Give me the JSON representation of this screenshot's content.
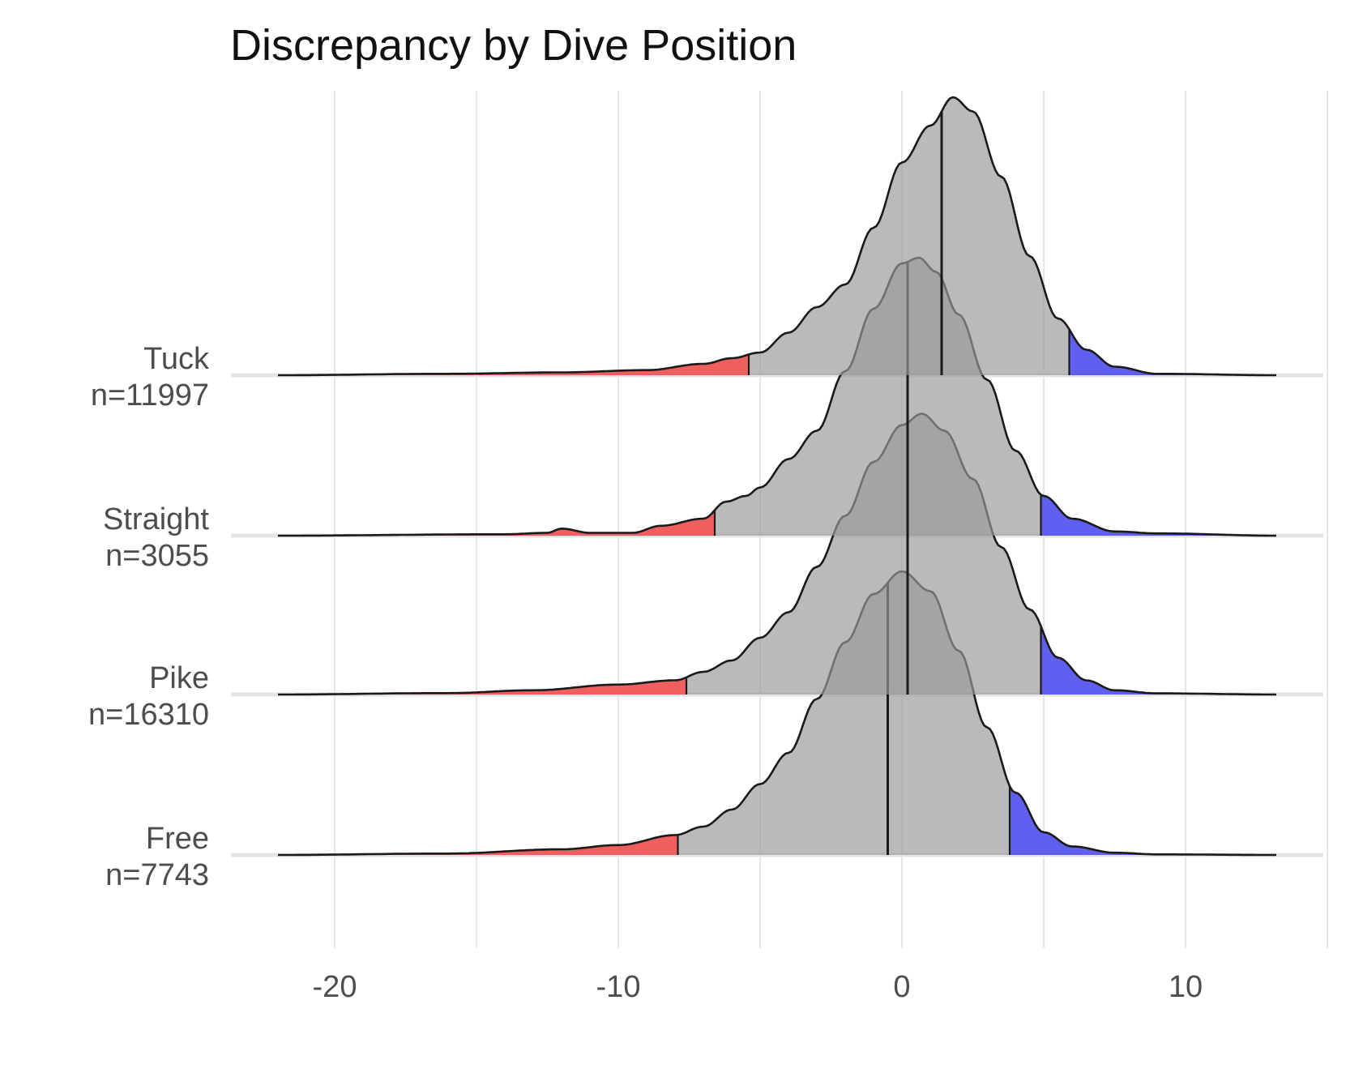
{
  "chart_data": {
    "type": "ridgeline",
    "title": "Discrepancy by Dive Position",
    "xlabel": "",
    "ylabel": "",
    "xlim": [
      -24,
      15
    ],
    "x_ticks": [
      -20,
      -10,
      0,
      10
    ],
    "x_tick_labels": [
      "-20",
      "-10",
      "0",
      "10"
    ],
    "grid": true,
    "colors": {
      "body": "#999999",
      "left_tail": "#f25a5a",
      "right_tail": "#5a5af2",
      "outline": "#1a1a1a"
    },
    "series": [
      {
        "name": "Tuck",
        "n_label": "n=11997",
        "range": [
          -22,
          13.2
        ],
        "median": 1.4,
        "lower_cutoff": -5.4,
        "upper_cutoff": 5.9,
        "density_points": [
          [
            -22,
            0
          ],
          [
            -16,
            0.005
          ],
          [
            -12,
            0.01
          ],
          [
            -9,
            0.018
          ],
          [
            -7,
            0.04
          ],
          [
            -6,
            0.06
          ],
          [
            -5,
            0.08
          ],
          [
            -4,
            0.15
          ],
          [
            -3,
            0.24
          ],
          [
            -2,
            0.32
          ],
          [
            -1,
            0.52
          ],
          [
            0,
            0.75
          ],
          [
            1,
            0.88
          ],
          [
            1.8,
            0.98
          ],
          [
            2.5,
            0.93
          ],
          [
            3.5,
            0.7
          ],
          [
            4.5,
            0.42
          ],
          [
            5.5,
            0.2
          ],
          [
            6.5,
            0.09
          ],
          [
            7.5,
            0.03
          ],
          [
            9,
            0.005
          ],
          [
            13.2,
            0
          ]
        ]
      },
      {
        "name": "Straight",
        "n_label": "n=3055",
        "range": [
          -22,
          13.2
        ],
        "median": 0.2,
        "lower_cutoff": -6.6,
        "upper_cutoff": 4.9,
        "density_points": [
          [
            -22,
            0
          ],
          [
            -14,
            0.005
          ],
          [
            -12.5,
            0.01
          ],
          [
            -12,
            0.025
          ],
          [
            -11,
            0.01
          ],
          [
            -9.5,
            0.01
          ],
          [
            -8.5,
            0.035
          ],
          [
            -7,
            0.06
          ],
          [
            -6.2,
            0.12
          ],
          [
            -5.5,
            0.14
          ],
          [
            -5,
            0.17
          ],
          [
            -4,
            0.27
          ],
          [
            -3,
            0.37
          ],
          [
            -2,
            0.58
          ],
          [
            -1,
            0.8
          ],
          [
            0,
            0.96
          ],
          [
            0.6,
            0.98
          ],
          [
            1.2,
            0.93
          ],
          [
            2,
            0.78
          ],
          [
            3,
            0.55
          ],
          [
            4,
            0.3
          ],
          [
            5,
            0.14
          ],
          [
            6,
            0.06
          ],
          [
            7.5,
            0.015
          ],
          [
            9,
            0.008
          ],
          [
            13.2,
            0
          ]
        ]
      },
      {
        "name": "Pike",
        "n_label": "n=16310",
        "range": [
          -22,
          13.2
        ],
        "median": 0.2,
        "lower_cutoff": -7.6,
        "upper_cutoff": 4.9,
        "density_points": [
          [
            -22,
            0
          ],
          [
            -16,
            0.005
          ],
          [
            -13,
            0.015
          ],
          [
            -10,
            0.035
          ],
          [
            -8,
            0.05
          ],
          [
            -7,
            0.08
          ],
          [
            -6,
            0.12
          ],
          [
            -5,
            0.2
          ],
          [
            -4,
            0.29
          ],
          [
            -3,
            0.45
          ],
          [
            -2,
            0.63
          ],
          [
            -1,
            0.82
          ],
          [
            0,
            0.95
          ],
          [
            0.7,
            0.99
          ],
          [
            1.5,
            0.93
          ],
          [
            2.5,
            0.76
          ],
          [
            3.5,
            0.52
          ],
          [
            4.5,
            0.3
          ],
          [
            5.5,
            0.13
          ],
          [
            6.5,
            0.05
          ],
          [
            7.5,
            0.015
          ],
          [
            9,
            0.004
          ],
          [
            13.2,
            0
          ]
        ]
      },
      {
        "name": "Free",
        "n_label": "n=7743",
        "range": [
          -22,
          13.2
        ],
        "median": -0.5,
        "lower_cutoff": -7.9,
        "upper_cutoff": 3.8,
        "density_points": [
          [
            -22,
            0
          ],
          [
            -16,
            0.005
          ],
          [
            -12,
            0.02
          ],
          [
            -10,
            0.035
          ],
          [
            -8,
            0.07
          ],
          [
            -7,
            0.1
          ],
          [
            -6,
            0.16
          ],
          [
            -5,
            0.25
          ],
          [
            -4,
            0.36
          ],
          [
            -3,
            0.55
          ],
          [
            -2,
            0.75
          ],
          [
            -1,
            0.92
          ],
          [
            0,
            1.0
          ],
          [
            1,
            0.93
          ],
          [
            2,
            0.72
          ],
          [
            3,
            0.45
          ],
          [
            4,
            0.22
          ],
          [
            5,
            0.08
          ],
          [
            6,
            0.03
          ],
          [
            7.5,
            0.008
          ],
          [
            9,
            0.002
          ],
          [
            13.2,
            0
          ]
        ]
      }
    ]
  }
}
